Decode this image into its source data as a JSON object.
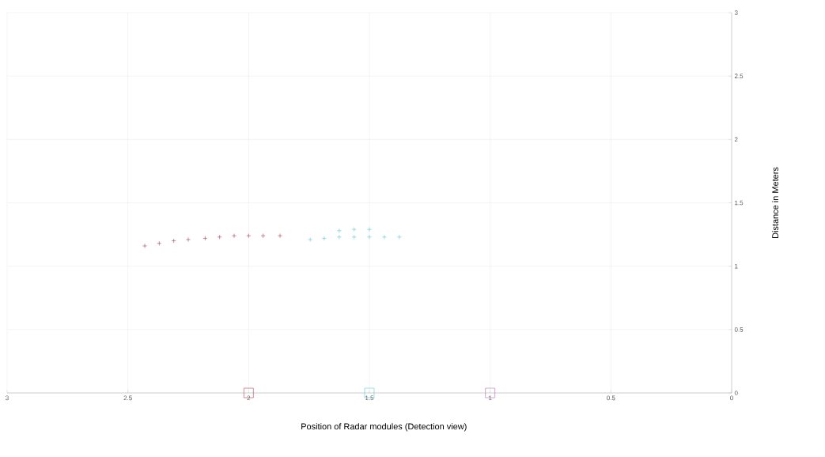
{
  "chart_data": {
    "type": "scatter",
    "xlabel": "Position of Radar modules (Detection view)",
    "ylabel": "Distance in Meters",
    "series": [
      {
        "color": "#a0404a",
        "marker": "cross",
        "x": [
          2.43,
          2.37,
          2.31,
          2.25,
          2.18,
          2.12,
          2.06,
          2.0,
          1.94,
          1.87
        ],
        "values": [
          1.16,
          1.18,
          1.2,
          1.21,
          1.22,
          1.23,
          1.24,
          1.24,
          1.24,
          1.24
        ]
      },
      {
        "color": "#5bc8d0",
        "marker": "cross",
        "x": [
          1.745,
          1.687,
          1.625,
          1.625,
          1.563,
          1.563,
          1.5,
          1.5,
          1.438,
          1.376
        ],
        "values": [
          1.21,
          1.22,
          1.23,
          1.28,
          1.23,
          1.29,
          1.23,
          1.29,
          1.23,
          1.23
        ]
      },
      {
        "color": "#b04050",
        "marker": "square",
        "x": [
          2.0
        ],
        "values": [
          0
        ]
      },
      {
        "color": "#5bc8d0",
        "marker": "square",
        "x": [
          1.5
        ],
        "values": [
          0
        ]
      },
      {
        "color": "#b070b0",
        "marker": "square",
        "x": [
          1.0
        ],
        "values": [
          0
        ]
      }
    ],
    "xlim": [
      3,
      0
    ],
    "ylim": [
      0,
      3
    ],
    "xticks": [
      0,
      0.5,
      1,
      1.5,
      2,
      2.5,
      3
    ],
    "yticks": [
      0,
      0.5,
      1,
      1.5,
      2,
      2.5,
      3
    ],
    "grid": true
  }
}
